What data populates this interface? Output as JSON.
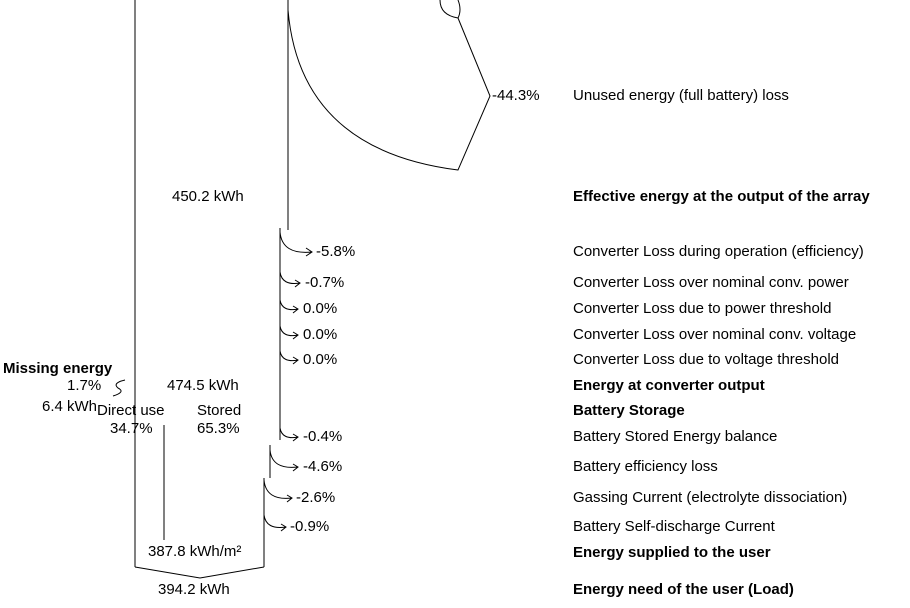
{
  "top_loss": {
    "value": "-44.3%",
    "label": "Unused energy (full battery) loss"
  },
  "array_output": {
    "value": "450.2 kWh",
    "label": "Effective energy at the output of the array"
  },
  "converter_losses": [
    {
      "value": "-5.8%",
      "label": "Converter Loss during operation (efficiency)"
    },
    {
      "value": "-0.7%",
      "label": "Converter Loss over nominal conv. power"
    },
    {
      "value": "0.0%",
      "label": "Converter Loss due to power threshold"
    },
    {
      "value": "0.0%",
      "label": "Converter Loss over nominal conv. voltage"
    },
    {
      "value": "0.0%",
      "label": "Converter Loss due to voltage threshold"
    }
  ],
  "missing_energy": {
    "label": "Missing energy",
    "percent": "1.7%",
    "energy": "6.4 kWh"
  },
  "converter_output": {
    "value": "474.5 kWh",
    "label": "Energy at converter output"
  },
  "battery": {
    "label": "Battery Storage",
    "direct_use": "Direct use",
    "direct_share": "34.7%",
    "stored": "Stored",
    "stored_share": "65.3%"
  },
  "battery_losses": [
    {
      "value": "-0.4%",
      "label": "Battery Stored Energy balance"
    },
    {
      "value": "-4.6%",
      "label": "Battery efficiency loss"
    },
    {
      "value": "-2.6%",
      "label": "Gassing Current (electrolyte dissociation)"
    },
    {
      "value": "-0.9%",
      "label": "Battery Self-discharge Current"
    }
  ],
  "supplied": {
    "value": "387.8 kWh/m²",
    "label": "Energy supplied to the user"
  },
  "load": {
    "value": "394.2 kWh",
    "label": "Energy need of the user (Load)"
  }
}
